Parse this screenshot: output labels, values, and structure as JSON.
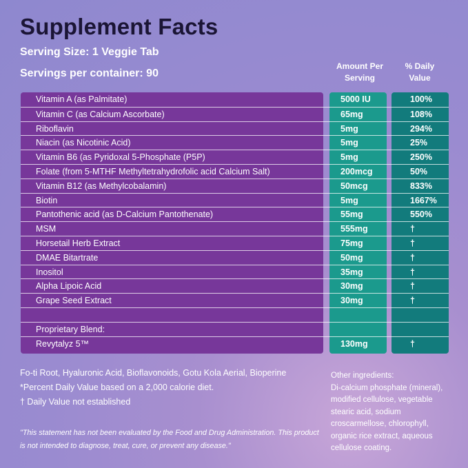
{
  "title": "Supplement Facts",
  "serving_size": "Serving Size: 1 Veggie Tab",
  "servings_per_container": "Servings per container: 90",
  "col_amount": [
    "Amount Per",
    "Serving"
  ],
  "col_daily": [
    "% Daily",
    "Value"
  ],
  "rows": [
    {
      "name": "Vitamin A (as Palmitate)",
      "amount": "5000 IU",
      "dv": "100%"
    },
    {
      "name": "Vitamin C (as Calcium Ascorbate)",
      "amount": "65mg",
      "dv": "108%"
    },
    {
      "name": "Riboflavin",
      "amount": "5mg",
      "dv": "294%"
    },
    {
      "name": "Niacin (as Nicotinic Acid)",
      "amount": "5mg",
      "dv": "25%"
    },
    {
      "name": "Vitamin B6 (as Pyridoxal 5-Phosphate (P5P)",
      "amount": "5mg",
      "dv": "250%"
    },
    {
      "name": "Folate (from 5-MTHF Methyltetrahydrofolic acid Calcium Salt)",
      "amount": "200mcg",
      "dv": "50%"
    },
    {
      "name": "Vitamin B12 (as Methylcobalamin)",
      "amount": "50mcg",
      "dv": "833%"
    },
    {
      "name": "Biotin",
      "amount": "5mg",
      "dv": "1667%"
    },
    {
      "name": "Pantothenic acid (as D-Calcium Pantothenate)",
      "amount": "55mg",
      "dv": "550%"
    },
    {
      "name": "MSM",
      "amount": "555mg",
      "dv": "†"
    },
    {
      "name": "Horsetail Herb Extract",
      "amount": "75mg",
      "dv": "†"
    },
    {
      "name": "DMAE Bitartrate",
      "amount": "50mg",
      "dv": "†"
    },
    {
      "name": "Inositol",
      "amount": "35mg",
      "dv": "†"
    },
    {
      "name": "Alpha Lipoic Acid",
      "amount": "30mg",
      "dv": "†"
    },
    {
      "name": "Grape Seed Extract",
      "amount": "30mg",
      "dv": "†"
    },
    {
      "name": "",
      "amount": "",
      "dv": ""
    },
    {
      "name": "Proprietary Blend:",
      "amount": "",
      "dv": ""
    },
    {
      "name": "Revytalyz 5™",
      "amount": "130mg",
      "dv": "†"
    }
  ],
  "footnotes": [
    "Fo-ti Root, Hyaluronic Acid, Bioflavonoids, Gotu Kola Aerial, Bioperine",
    "*Percent Daily Value based on a 2,000 calorie diet.",
    "† Daily Value not established"
  ],
  "other_ingredients_label": "Other ingredients:",
  "other_ingredients": "Di-calcium phosphate (mineral), modified cellulose, vegetable stearic acid, sodium croscarmellose, chlorophyll, organic rice extract, aqueous cellulose coating.",
  "disclaimer": "\"This statement has not been evaluated by the Food and Drug Administration. This product is not intended to diagnose, treat, cure, or prevent any disease.\"",
  "colors": {
    "name_panel": "#77379a",
    "amount_panel": "#1b9a8d",
    "dv_panel": "#127b7c"
  }
}
